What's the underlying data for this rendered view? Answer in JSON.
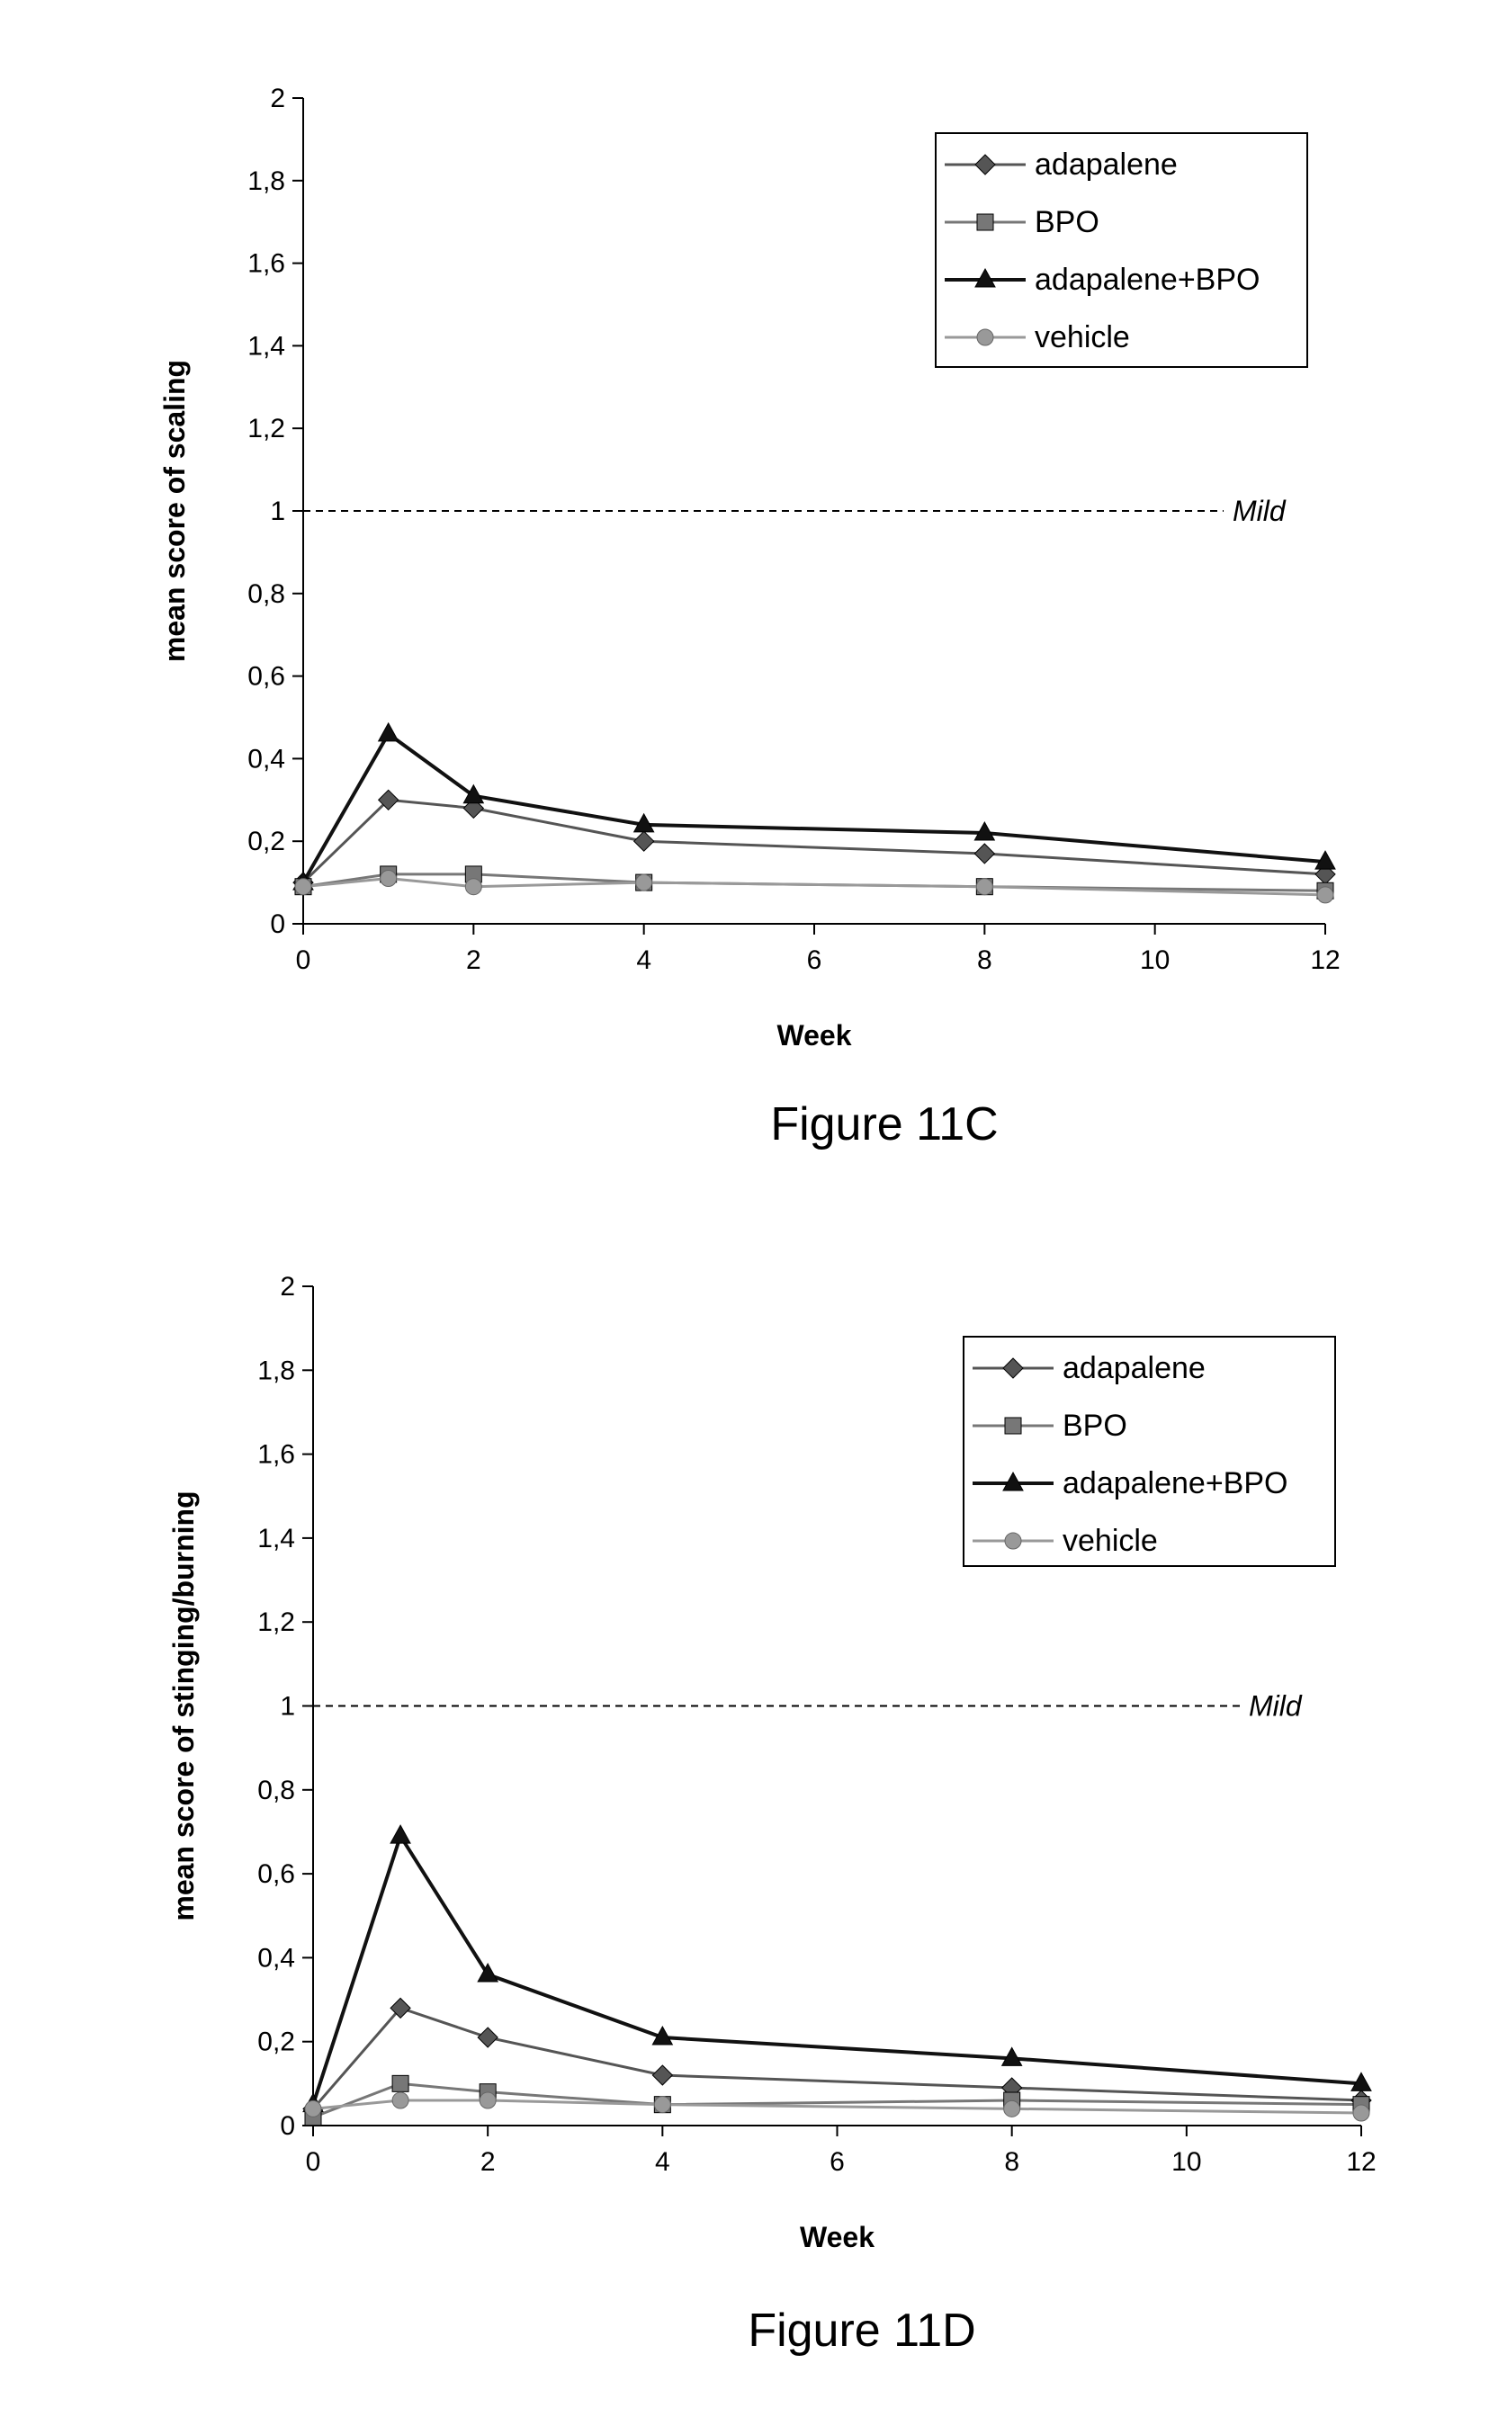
{
  "figures": [
    {
      "caption": "Figure 11C",
      "ref_line_label": "Mild"
    },
    {
      "caption": "Figure 11D",
      "ref_line_label": "Mild"
    }
  ],
  "chart_data": [
    {
      "type": "line",
      "title": "",
      "xlabel": "Week",
      "ylabel": "mean score of scaling",
      "x": [
        0,
        1,
        2,
        4,
        8,
        12
      ],
      "xlim": [
        0,
        12
      ],
      "xticks": [
        0,
        2,
        4,
        6,
        8,
        10,
        12
      ],
      "ylim": [
        0,
        2
      ],
      "yticks": [
        "0",
        "0,2",
        "0,4",
        "0,6",
        "0,8",
        "1",
        "1,2",
        "1,4",
        "1,6",
        "1,8",
        "2"
      ],
      "reference_line": {
        "y": 1,
        "label": "Mild",
        "style": "dashed"
      },
      "legend_position": "top-right",
      "grid": false,
      "series": [
        {
          "name": "adapalene",
          "marker": "diamond",
          "color": "#555555",
          "values": [
            0.1,
            0.3,
            0.28,
            0.2,
            0.17,
            0.12
          ]
        },
        {
          "name": "BPO",
          "marker": "square",
          "color": "#777777",
          "values": [
            0.09,
            0.12,
            0.12,
            0.1,
            0.09,
            0.08
          ]
        },
        {
          "name": "adapalene+BPO",
          "marker": "triangle",
          "color": "#111111",
          "values": [
            0.1,
            0.46,
            0.31,
            0.24,
            0.22,
            0.15
          ]
        },
        {
          "name": "vehicle",
          "marker": "circle",
          "color": "#999999",
          "values": [
            0.09,
            0.11,
            0.09,
            0.1,
            0.09,
            0.07
          ]
        }
      ]
    },
    {
      "type": "line",
      "title": "",
      "xlabel": "Week",
      "ylabel": "mean score of stinging/burning",
      "x": [
        0,
        1,
        2,
        4,
        8,
        12
      ],
      "xlim": [
        0,
        12
      ],
      "xticks": [
        0,
        2,
        4,
        6,
        8,
        10,
        12
      ],
      "ylim": [
        0,
        2
      ],
      "yticks": [
        "0",
        "0,2",
        "0,4",
        "0,6",
        "0,8",
        "1",
        "1,2",
        "1,4",
        "1,6",
        "1,8",
        "2"
      ],
      "reference_line": {
        "y": 1,
        "label": "Mild",
        "style": "dashed"
      },
      "legend_position": "top-right",
      "grid": false,
      "series": [
        {
          "name": "adapalene",
          "marker": "diamond",
          "color": "#555555",
          "values": [
            0.04,
            0.28,
            0.21,
            0.12,
            0.09,
            0.06
          ]
        },
        {
          "name": "BPO",
          "marker": "square",
          "color": "#777777",
          "values": [
            0.02,
            0.1,
            0.08,
            0.05,
            0.06,
            0.05
          ]
        },
        {
          "name": "adapalene+BPO",
          "marker": "triangle",
          "color": "#111111",
          "values": [
            0.05,
            0.69,
            0.36,
            0.21,
            0.16,
            0.1
          ]
        },
        {
          "name": "vehicle",
          "marker": "circle",
          "color": "#999999",
          "values": [
            0.04,
            0.06,
            0.06,
            0.05,
            0.04,
            0.03
          ]
        }
      ]
    }
  ]
}
